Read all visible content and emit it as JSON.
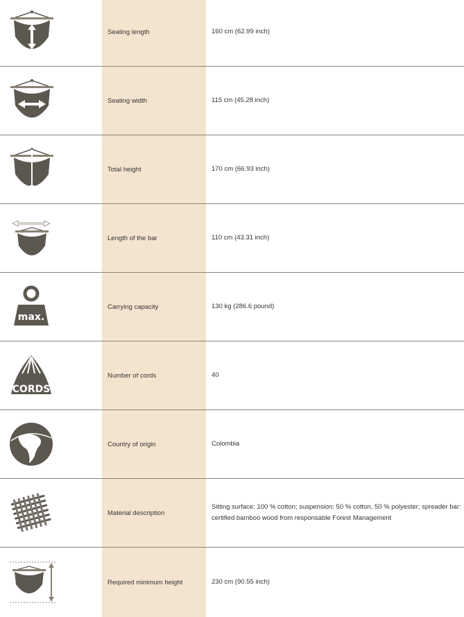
{
  "colors": {
    "icon": "#5c5850",
    "label_column": "#f3e4cf",
    "divider": "#8a8374"
  },
  "rows": [
    {
      "icon": "hammock-length-icon",
      "label": "Seating length",
      "value": "160 cm (62.99 inch)"
    },
    {
      "icon": "hammock-width-icon",
      "label": "Seating width",
      "value": "115 cm (45.28 inch)"
    },
    {
      "icon": "hammock-height-icon",
      "label": "Total height",
      "value": "170 cm (66.93 inch)"
    },
    {
      "icon": "bar-length-icon",
      "label": "Length of the bar",
      "value": "110 cm (43.31 inch)"
    },
    {
      "icon": "weight-max-icon",
      "icon_text": "max.",
      "label": "Carrying capacity",
      "value": "130 kg (286.6 pound)"
    },
    {
      "icon": "cords-icon",
      "icon_text": "CORDS",
      "label": "Number of cords",
      "value": "40"
    },
    {
      "icon": "globe-icon",
      "label": "Country of origin",
      "value": "Colombia"
    },
    {
      "icon": "fabric-weave-icon",
      "label": "Material description",
      "value": "Sitting surface: 100 % cotton; suspension: 50 % cotton, 50 % polyester; spreader bar: certified bamboo wood from responsable Forest Management"
    },
    {
      "icon": "minimum-height-icon",
      "label": "Required minimum height",
      "value": "230 cm (90.55 inch)"
    }
  ]
}
